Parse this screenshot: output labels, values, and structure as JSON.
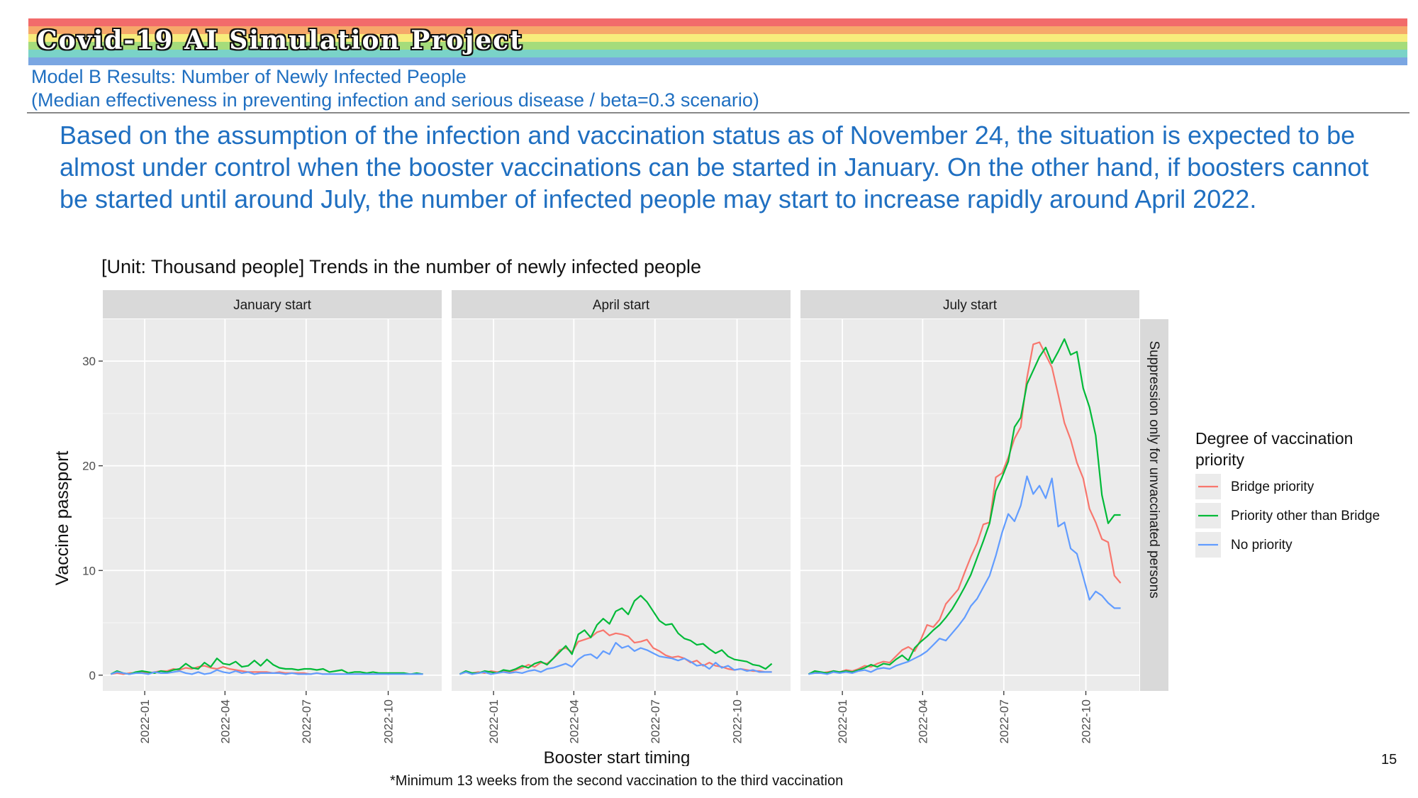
{
  "slide": {
    "banner_title": "Covid-19 AI Simulation Project",
    "subtitle_line1": "Model B Results: Number of Newly Infected People",
    "subtitle_line2": "(Median effectiveness in preventing infection and serious disease / beta=0.3 scenario)",
    "intro_text": "Based on the assumption of the infection and vaccination status as of November 24, the situation is expected to be almost under control when the booster vaccinations can be started in January. On the other hand, if boosters cannot be started until around July, the number of infected people may start to increase rapidly around April 2022.",
    "chart_title": "[Unit: Thousand people] Trends in the number of newly infected people",
    "footnote": "*Minimum 13 weeks from the second vaccination to the third vaccination",
    "page_number": "15",
    "rainbow_colors": [
      "#f26b6b",
      "#f6a86a",
      "#f7ec7c",
      "#a5dc7b",
      "#7ad3c8",
      "#7aa6e2",
      "#a98bd6"
    ]
  },
  "chart_data": {
    "type": "line",
    "xlabel": "Booster start timing",
    "ylabel": "Vaccine passport",
    "strip_right": "Suppression only for unvaccinated persons",
    "ylim": [
      -1.5,
      34
    ],
    "y_ticks": [
      0,
      10,
      20,
      30
    ],
    "xlim": [
      "2021-11-15",
      "2022-11-30"
    ],
    "x_ticks": [
      "2022-01",
      "2022-04",
      "2022-07",
      "2022-10"
    ],
    "grid": true,
    "legend": {
      "title": "Degree of vaccination priority",
      "position": "right",
      "entries": [
        "Bridge priority",
        "Priority other than Bridge",
        "No priority"
      ]
    },
    "colors": [
      "#f8766d",
      "#00ba38",
      "#619cff"
    ],
    "x_start": "2021-11-24",
    "x_step_days": 7,
    "facets": [
      {
        "label": "January start",
        "series": [
          {
            "name": "Bridge priority",
            "values": [
              0.1,
              0.2,
              0.1,
              0.2,
              0.2,
              0.3,
              0.2,
              0.3,
              0.4,
              0.4,
              0.6,
              0.5,
              0.7,
              0.6,
              0.8,
              0.9,
              0.7,
              0.6,
              0.8,
              0.6,
              0.5,
              0.4,
              0.3,
              0.3,
              0.3,
              0.3,
              0.2,
              0.3,
              0.2,
              0.2,
              0.2,
              0.2,
              0.1,
              0.2,
              0.1,
              0.1,
              0.1,
              0.1,
              0.1,
              0.1,
              0.1,
              0.1,
              0.1,
              0.1,
              0.1,
              0.1,
              0.1,
              0.1,
              0.1,
              0.1,
              0.1
            ]
          },
          {
            "name": "Priority other than Bridge",
            "values": [
              0.1,
              0.4,
              0.2,
              0.1,
              0.3,
              0.4,
              0.3,
              0.2,
              0.4,
              0.3,
              0.5,
              0.6,
              1.1,
              0.7,
              0.6,
              1.2,
              0.8,
              1.6,
              1.1,
              1.0,
              1.3,
              0.8,
              0.9,
              1.4,
              0.9,
              1.5,
              1.0,
              0.7,
              0.6,
              0.6,
              0.5,
              0.6,
              0.6,
              0.5,
              0.6,
              0.3,
              0.4,
              0.5,
              0.2,
              0.3,
              0.3,
              0.2,
              0.3,
              0.2,
              0.2,
              0.2,
              0.2,
              0.2,
              0.1,
              0.2,
              0.1
            ]
          },
          {
            "name": "No priority",
            "values": [
              0.1,
              0.3,
              0.2,
              0.1,
              0.2,
              0.2,
              0.1,
              0.3,
              0.2,
              0.2,
              0.3,
              0.4,
              0.2,
              0.1,
              0.3,
              0.1,
              0.2,
              0.5,
              0.3,
              0.2,
              0.4,
              0.2,
              0.3,
              0.1,
              0.2,
              0.2,
              0.2,
              0.2,
              0.1,
              0.2,
              0.1,
              0.1,
              0.1,
              0.2,
              0.1,
              0.1,
              0.1,
              0.1,
              0.1,
              0.1,
              0.1,
              0.1,
              0.1,
              0.1,
              0.1,
              0.1,
              0.1,
              0.1,
              0.1,
              0.1,
              0.1
            ]
          }
        ]
      },
      {
        "label": "April start",
        "series": [
          {
            "name": "Bridge priority",
            "values": [
              0.1,
              0.3,
              0.2,
              0.3,
              0.2,
              0.4,
              0.3,
              0.4,
              0.3,
              0.5,
              0.7,
              1.0,
              0.8,
              1.2,
              1.1,
              1.6,
              2.4,
              2.6,
              2.2,
              3.2,
              3.4,
              3.6,
              4.1,
              4.3,
              3.8,
              4.0,
              3.9,
              3.7,
              3.1,
              3.2,
              3.4,
              2.6,
              2.3,
              1.9,
              1.7,
              1.8,
              1.6,
              1.2,
              1.4,
              0.9,
              1.2,
              0.9,
              0.8,
              0.6,
              0.5,
              0.6,
              0.5,
              0.4,
              0.4,
              0.3,
              0.3
            ]
          },
          {
            "name": "Priority other than Bridge",
            "values": [
              0.1,
              0.4,
              0.2,
              0.2,
              0.4,
              0.3,
              0.2,
              0.5,
              0.4,
              0.6,
              0.9,
              0.7,
              1.1,
              1.3,
              1.0,
              1.6,
              2.2,
              2.8,
              2.0,
              3.9,
              4.3,
              3.6,
              4.8,
              5.4,
              4.9,
              6.1,
              6.4,
              5.8,
              7.1,
              7.6,
              7.0,
              6.1,
              5.2,
              4.8,
              4.9,
              4.0,
              3.5,
              3.3,
              2.9,
              3.0,
              2.5,
              2.1,
              2.4,
              1.8,
              1.5,
              1.4,
              1.3,
              1.0,
              0.9,
              0.6,
              1.1
            ]
          },
          {
            "name": "No priority",
            "values": [
              0.1,
              0.3,
              0.1,
              0.2,
              0.3,
              0.1,
              0.2,
              0.3,
              0.2,
              0.3,
              0.2,
              0.4,
              0.5,
              0.3,
              0.6,
              0.7,
              0.9,
              1.1,
              0.8,
              1.5,
              1.9,
              2.0,
              1.6,
              2.3,
              2.0,
              3.1,
              2.6,
              2.8,
              2.3,
              2.6,
              2.4,
              2.1,
              1.8,
              1.7,
              1.6,
              1.4,
              1.6,
              1.3,
              0.9,
              1.0,
              0.6,
              1.2,
              0.7,
              0.9,
              0.5,
              0.6,
              0.4,
              0.5,
              0.3,
              0.3,
              0.3
            ]
          }
        ]
      },
      {
        "label": "July start",
        "series": [
          {
            "name": "Bridge priority",
            "values": [
              0.1,
              0.3,
              0.2,
              0.3,
              0.4,
              0.3,
              0.5,
              0.4,
              0.6,
              0.9,
              0.8,
              1.1,
              1.3,
              1.2,
              1.8,
              2.4,
              2.7,
              2.3,
              3.4,
              4.8,
              4.6,
              5.3,
              6.8,
              7.5,
              8.2,
              9.8,
              11.3,
              12.6,
              14.4,
              14.6,
              18.9,
              19.3,
              20.8,
              22.6,
              23.7,
              28.4,
              31.6,
              31.8,
              30.6,
              29.4,
              26.8,
              24.1,
              22.5,
              20.3,
              18.8,
              15.9,
              14.6,
              13.0,
              12.7,
              9.5,
              8.8
            ]
          },
          {
            "name": "Priority other than Bridge",
            "values": [
              0.1,
              0.4,
              0.3,
              0.2,
              0.4,
              0.3,
              0.4,
              0.3,
              0.5,
              0.7,
              1.0,
              0.8,
              1.1,
              1.0,
              1.5,
              1.9,
              1.4,
              2.6,
              3.2,
              3.7,
              4.3,
              4.8,
              5.5,
              6.3,
              7.3,
              8.4,
              9.6,
              11.2,
              12.8,
              14.5,
              17.6,
              18.9,
              20.4,
              23.7,
              24.6,
              27.8,
              29.1,
              30.4,
              31.3,
              29.8,
              30.9,
              32.1,
              30.6,
              30.9,
              27.4,
              25.6,
              22.9,
              17.2,
              14.5,
              15.3,
              15.3
            ]
          },
          {
            "name": "No priority",
            "values": [
              0.1,
              0.2,
              0.2,
              0.1,
              0.3,
              0.2,
              0.3,
              0.2,
              0.4,
              0.5,
              0.3,
              0.6,
              0.7,
              0.6,
              0.9,
              1.1,
              1.3,
              1.6,
              1.9,
              2.3,
              2.9,
              3.5,
              3.3,
              4.0,
              4.7,
              5.5,
              6.6,
              7.3,
              8.4,
              9.5,
              11.4,
              13.6,
              15.4,
              14.7,
              16.2,
              19.0,
              17.3,
              18.1,
              16.9,
              18.8,
              14.2,
              14.6,
              12.1,
              11.6,
              9.4,
              7.2,
              8.0,
              7.6,
              6.9,
              6.4,
              6.4
            ]
          }
        ]
      }
    ]
  }
}
